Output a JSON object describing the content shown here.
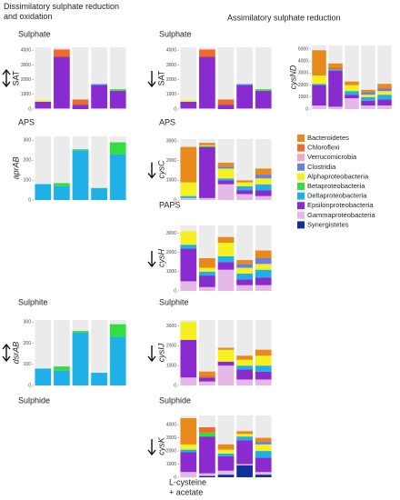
{
  "headers": {
    "left": "Dissimilatory sulphate reduction and oxidation",
    "right": "Assimilatory sulphate reduction"
  },
  "labels": [
    "Sulphate",
    "Sulphate",
    "APS",
    "APS",
    "PAPS",
    "Sulphite",
    "Sulphite",
    "Sulphide",
    "Sulphide",
    "L-cysteine",
    "+ acetate"
  ],
  "legend": [
    {
      "name": "Bacteroidetes",
      "color": "#e8891c"
    },
    {
      "name": "Chloroflexi",
      "color": "#f06a2a"
    },
    {
      "name": "Verrucomicrobia",
      "color": "#f2a6c4"
    },
    {
      "name": "Clostridia",
      "color": "#6b7fe0"
    },
    {
      "name": "Alphaproteobacteria",
      "color": "#f5f020"
    },
    {
      "name": "Betaproteobacteria",
      "color": "#33dd44"
    },
    {
      "name": "Deltaproteobacteria",
      "color": "#1fb0e8"
    },
    {
      "name": "Epsilonproteobacteria",
      "color": "#8a2bd0"
    },
    {
      "name": "Gammaproteobacteria",
      "color": "#e6b8e8"
    },
    {
      "name": "Synergistetes",
      "color": "#1030a0"
    }
  ],
  "chart_data": [
    {
      "type": "bar",
      "stacked": true,
      "gene": "SAT",
      "italic": false,
      "direction": "both",
      "ylim": [
        0,
        4200
      ],
      "yticks": [
        0,
        1000,
        2000,
        3000,
        4000
      ],
      "series": [
        {
          "values": [
            0,
            0,
            0,
            0,
            0
          ]
        },
        {
          "values": [
            0,
            500,
            350,
            0,
            0
          ]
        },
        {
          "values": [
            0,
            0,
            0,
            0,
            0
          ]
        },
        {
          "values": [
            0,
            0,
            0,
            0,
            0
          ]
        },
        {
          "values": [
            100,
            0,
            0,
            0,
            0
          ]
        },
        {
          "values": [
            0,
            0,
            0,
            0,
            100
          ]
        },
        {
          "values": [
            0,
            0,
            0,
            50,
            0
          ]
        },
        {
          "values": [
            450,
            3500,
            300,
            1600,
            1200
          ]
        },
        {
          "values": [
            50,
            50,
            0,
            50,
            50
          ]
        },
        {
          "values": [
            0,
            0,
            0,
            0,
            0
          ]
        }
      ]
    },
    {
      "type": "bar",
      "stacked": true,
      "gene": "SAT",
      "italic": false,
      "direction": "down",
      "ylim": [
        0,
        4200
      ],
      "yticks": [
        0,
        1000,
        2000,
        3000,
        4000
      ],
      "series": [
        {
          "values": [
            0,
            0,
            0,
            0,
            0
          ]
        },
        {
          "values": [
            0,
            500,
            350,
            0,
            0
          ]
        },
        {
          "values": [
            0,
            0,
            0,
            0,
            0
          ]
        },
        {
          "values": [
            0,
            0,
            0,
            0,
            0
          ]
        },
        {
          "values": [
            100,
            0,
            0,
            0,
            0
          ]
        },
        {
          "values": [
            0,
            0,
            0,
            0,
            100
          ]
        },
        {
          "values": [
            0,
            0,
            0,
            50,
            0
          ]
        },
        {
          "values": [
            450,
            3500,
            300,
            1600,
            1200
          ]
        },
        {
          "values": [
            50,
            50,
            0,
            50,
            50
          ]
        },
        {
          "values": [
            0,
            0,
            0,
            0,
            0
          ]
        }
      ]
    },
    {
      "type": "bar",
      "stacked": true,
      "gene": "cysND",
      "italic": true,
      "direction": "none",
      "ylim": [
        0,
        5300
      ],
      "yticks": [
        0,
        1000,
        2000,
        3000,
        4000,
        5000
      ],
      "series": [
        {
          "values": [
            2100,
            300,
            300,
            200,
            300
          ]
        },
        {
          "values": [
            0,
            200,
            0,
            0,
            100
          ]
        },
        {
          "values": [
            0,
            0,
            0,
            0,
            0
          ]
        },
        {
          "values": [
            0,
            0,
            0,
            200,
            200
          ]
        },
        {
          "values": [
            700,
            0,
            500,
            200,
            300
          ]
        },
        {
          "values": [
            0,
            0,
            0,
            0,
            0
          ]
        },
        {
          "values": [
            100,
            100,
            300,
            300,
            400
          ]
        },
        {
          "values": [
            1700,
            3000,
            300,
            400,
            500
          ]
        },
        {
          "values": [
            300,
            200,
            900,
            300,
            300
          ]
        },
        {
          "values": [
            0,
            0,
            0,
            0,
            0
          ]
        }
      ]
    },
    {
      "type": "bar",
      "stacked": true,
      "gene": "aprAB",
      "italic": true,
      "direction": "none",
      "ylim": [
        0,
        320
      ],
      "yticks": [
        0,
        100,
        200,
        300
      ],
      "series": [
        {
          "values": [
            0,
            0,
            0,
            0,
            0
          ]
        },
        {
          "values": [
            0,
            0,
            0,
            0,
            0
          ]
        },
        {
          "values": [
            0,
            0,
            0,
            0,
            0
          ]
        },
        {
          "values": [
            0,
            0,
            0,
            0,
            0
          ]
        },
        {
          "values": [
            0,
            0,
            0,
            0,
            0
          ]
        },
        {
          "values": [
            0,
            15,
            5,
            0,
            60
          ]
        },
        {
          "values": [
            80,
            70,
            250,
            60,
            230
          ]
        },
        {
          "values": [
            0,
            0,
            0,
            0,
            0
          ]
        },
        {
          "values": [
            0,
            0,
            0,
            0,
            0
          ]
        },
        {
          "values": [
            0,
            0,
            0,
            0,
            0
          ]
        }
      ]
    },
    {
      "type": "bar",
      "stacked": true,
      "gene": "cysC",
      "italic": true,
      "direction": "down",
      "ylim": [
        0,
        3100
      ],
      "yticks": [
        0,
        1000,
        2000,
        3000
      ],
      "series": [
        {
          "values": [
            1800,
            0,
            200,
            100,
            300
          ]
        },
        {
          "values": [
            0,
            100,
            0,
            0,
            0
          ]
        },
        {
          "values": [
            0,
            0,
            0,
            0,
            0
          ]
        },
        {
          "values": [
            0,
            0,
            100,
            0,
            200
          ]
        },
        {
          "values": [
            700,
            50,
            500,
            200,
            300
          ]
        },
        {
          "values": [
            0,
            50,
            0,
            0,
            0
          ]
        },
        {
          "values": [
            100,
            0,
            100,
            200,
            300
          ]
        },
        {
          "values": [
            0,
            2600,
            200,
            200,
            300
          ]
        },
        {
          "values": [
            100,
            100,
            800,
            300,
            200
          ]
        },
        {
          "values": [
            0,
            0,
            0,
            0,
            0
          ]
        }
      ]
    },
    {
      "type": "bar",
      "stacked": true,
      "gene": "cysH",
      "italic": true,
      "direction": "down",
      "ylim": [
        0,
        3400
      ],
      "yticks": [
        0,
        1000,
        2000,
        3000
      ],
      "series": [
        {
          "values": [
            0,
            500,
            300,
            200,
            400
          ]
        },
        {
          "values": [
            0,
            0,
            0,
            0,
            0
          ]
        },
        {
          "values": [
            0,
            0,
            0,
            0,
            0
          ]
        },
        {
          "values": [
            0,
            0,
            0,
            200,
            300
          ]
        },
        {
          "values": [
            700,
            200,
            700,
            300,
            300
          ]
        },
        {
          "values": [
            0,
            0,
            0,
            0,
            0
          ]
        },
        {
          "values": [
            200,
            200,
            300,
            300,
            400
          ]
        },
        {
          "values": [
            1700,
            600,
            400,
            300,
            400
          ]
        },
        {
          "values": [
            500,
            200,
            1100,
            300,
            300
          ]
        },
        {
          "values": [
            0,
            0,
            0,
            0,
            0
          ]
        }
      ]
    },
    {
      "type": "bar",
      "stacked": true,
      "gene": "dsrAB",
      "italic": true,
      "direction": "both",
      "ylim": [
        0,
        310
      ],
      "yticks": [
        0,
        100,
        200,
        300
      ],
      "series": [
        {
          "values": [
            0,
            0,
            0,
            0,
            0
          ]
        },
        {
          "values": [
            0,
            0,
            0,
            0,
            0
          ]
        },
        {
          "values": [
            0,
            0,
            0,
            0,
            0
          ]
        },
        {
          "values": [
            0,
            0,
            0,
            0,
            0
          ]
        },
        {
          "values": [
            0,
            0,
            0,
            0,
            0
          ]
        },
        {
          "values": [
            0,
            20,
            8,
            0,
            60
          ]
        },
        {
          "values": [
            80,
            70,
            250,
            60,
            230
          ]
        },
        {
          "values": [
            0,
            0,
            0,
            0,
            0
          ]
        },
        {
          "values": [
            0,
            0,
            0,
            0,
            0
          ]
        },
        {
          "values": [
            0,
            0,
            0,
            0,
            0
          ]
        }
      ]
    },
    {
      "type": "bar",
      "stacked": true,
      "gene": "cysIJ",
      "italic": true,
      "direction": "down",
      "ylim": [
        0,
        3300
      ],
      "yticks": [
        0,
        1000,
        2000,
        3000
      ],
      "series": [
        {
          "values": [
            0,
            200,
            100,
            200,
            300
          ]
        },
        {
          "values": [
            0,
            100,
            0,
            0,
            0
          ]
        },
        {
          "values": [
            0,
            0,
            0,
            0,
            0
          ]
        },
        {
          "values": [
            0,
            0,
            0,
            0,
            0
          ]
        },
        {
          "values": [
            900,
            0,
            600,
            300,
            500
          ]
        },
        {
          "values": [
            0,
            0,
            0,
            0,
            0
          ]
        },
        {
          "values": [
            0,
            0,
            0,
            200,
            300
          ]
        },
        {
          "values": [
            1900,
            200,
            200,
            500,
            400
          ]
        },
        {
          "values": [
            400,
            200,
            1000,
            300,
            300
          ]
        },
        {
          "values": [
            0,
            0,
            0,
            0,
            0
          ]
        }
      ]
    },
    {
      "type": "bar",
      "stacked": true,
      "gene": "cysK",
      "italic": true,
      "direction": "down",
      "ylim": [
        0,
        4700
      ],
      "yticks": [
        0,
        1000,
        2000,
        3000,
        4000
      ],
      "series": [
        {
          "values": [
            2000,
            0,
            400,
            200,
            300
          ]
        },
        {
          "values": [
            0,
            400,
            0,
            0,
            0
          ]
        },
        {
          "values": [
            0,
            0,
            0,
            0,
            0
          ]
        },
        {
          "values": [
            0,
            0,
            0,
            0,
            200
          ]
        },
        {
          "values": [
            400,
            0,
            300,
            200,
            500
          ]
        },
        {
          "values": [
            0,
            300,
            0,
            0,
            0
          ]
        },
        {
          "values": [
            200,
            0,
            200,
            300,
            500
          ]
        },
        {
          "values": [
            1500,
            2800,
            1100,
            1800,
            1100
          ]
        },
        {
          "values": [
            400,
            200,
            300,
            100,
            200
          ]
        },
        {
          "values": [
            0,
            100,
            200,
            900,
            200
          ]
        }
      ]
    }
  ]
}
